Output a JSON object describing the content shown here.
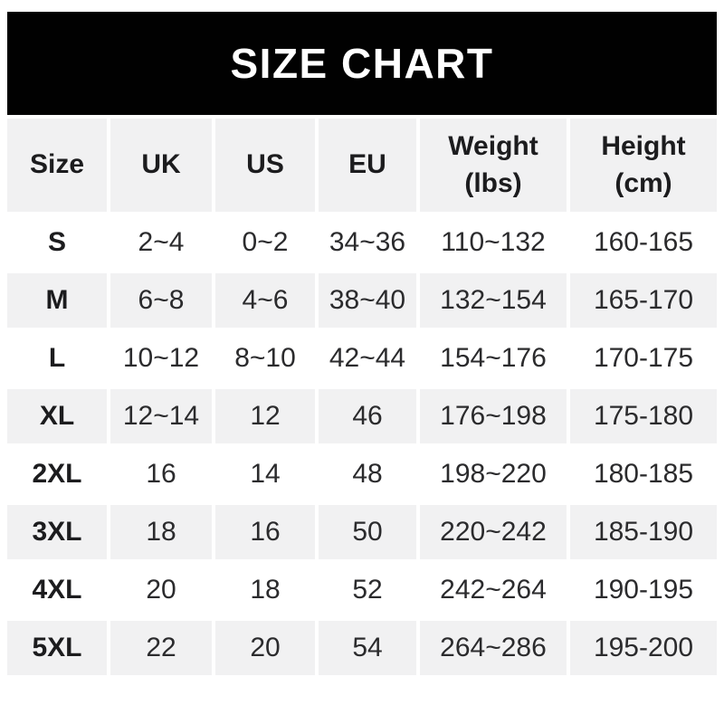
{
  "title": "SIZE CHART",
  "colors": {
    "banner_bg": "#010101",
    "banner_text": "#ffffff",
    "row_alt_bg": "#f1f1f2",
    "header_text": "#1c1c1e",
    "value_text": "#2b2b2d"
  },
  "chart_data": {
    "type": "table",
    "title": "SIZE CHART",
    "columns": [
      "Size",
      "UK",
      "US",
      "EU",
      "Weight (lbs)",
      "Height (cm)"
    ],
    "rows": [
      [
        "S",
        "2~4",
        "0~2",
        "34~36",
        "110~132",
        "160-165"
      ],
      [
        "M",
        "6~8",
        "4~6",
        "38~40",
        "132~154",
        "165-170"
      ],
      [
        "L",
        "10~12",
        "8~10",
        "42~44",
        "154~176",
        "170-175"
      ],
      [
        "XL",
        "12~14",
        "12",
        "46",
        "176~198",
        "175-180"
      ],
      [
        "2XL",
        "16",
        "14",
        "48",
        "198~220",
        "180-185"
      ],
      [
        "3XL",
        "18",
        "16",
        "50",
        "220~242",
        "185-190"
      ],
      [
        "4XL",
        "20",
        "18",
        "52",
        "242~264",
        "190-195"
      ],
      [
        "5XL",
        "22",
        "20",
        "54",
        "264~286",
        "195-200"
      ]
    ]
  },
  "table": {
    "headers": {
      "size": "Size",
      "uk": "UK",
      "us": "US",
      "eu": "EU",
      "weight": "Weight\n(lbs)",
      "height": "Height\n(cm)"
    },
    "rows": [
      {
        "size": "S",
        "uk": "2~4",
        "us": "0~2",
        "eu": "34~36",
        "weight": "110~132",
        "height": "160-165"
      },
      {
        "size": "M",
        "uk": "6~8",
        "us": "4~6",
        "eu": "38~40",
        "weight": "132~154",
        "height": "165-170"
      },
      {
        "size": "L",
        "uk": "10~12",
        "us": "8~10",
        "eu": "42~44",
        "weight": "154~176",
        "height": "170-175"
      },
      {
        "size": "XL",
        "uk": "12~14",
        "us": "12",
        "eu": "46",
        "weight": "176~198",
        "height": "175-180"
      },
      {
        "size": "2XL",
        "uk": "16",
        "us": "14",
        "eu": "48",
        "weight": "198~220",
        "height": "180-185"
      },
      {
        "size": "3XL",
        "uk": "18",
        "us": "16",
        "eu": "50",
        "weight": "220~242",
        "height": "185-190"
      },
      {
        "size": "4XL",
        "uk": "20",
        "us": "18",
        "eu": "52",
        "weight": "242~264",
        "height": "190-195"
      },
      {
        "size": "5XL",
        "uk": "22",
        "us": "20",
        "eu": "54",
        "weight": "264~286",
        "height": "195-200"
      }
    ]
  }
}
